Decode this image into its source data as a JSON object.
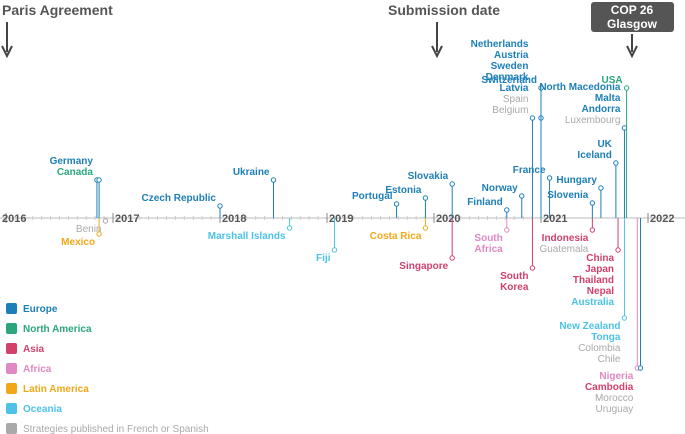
{
  "colors": {
    "Europe": "#1d7fb8",
    "North America": "#2ba67a",
    "Asia": "#d1416b",
    "Africa": "#e089c2",
    "Latin America": "#f0a819",
    "Oceania": "#4cc3e6",
    "Strategies published in French or Spanish": "#a9a9a9"
  },
  "headers": {
    "paris": "Paris Agreement",
    "submission": "Submission date",
    "cop_line1": "COP 26",
    "cop_line2": "Glasgow"
  },
  "chart_data": {
    "type": "timeline",
    "x_axis": {
      "ticks": [
        "2016",
        "2017",
        "2018",
        "2019",
        "2020",
        "2021",
        "2022"
      ],
      "range": [
        2016.0,
        2022.3
      ]
    },
    "markers": [
      {
        "label": "Paris Agreement",
        "x": 2016.0
      },
      {
        "label": "Submission date",
        "x": 2020.0
      },
      {
        "label": "COP 26 Glasgow",
        "x": 2021.84
      }
    ],
    "legend": [
      {
        "name": "Europe",
        "color": "#1d7fb8"
      },
      {
        "name": "North America",
        "color": "#2ba67a"
      },
      {
        "name": "Asia",
        "color": "#d1416b"
      },
      {
        "name": "Africa",
        "color": "#e089c2"
      },
      {
        "name": "Latin America",
        "color": "#f0a819"
      },
      {
        "name": "Oceania",
        "color": "#4cc3e6"
      },
      {
        "name": "Strategies published in French or Spanish",
        "color": "#a9a9a9"
      }
    ],
    "events": [
      {
        "x": 2016.85,
        "side": "up",
        "len": 38,
        "labels": [
          [
            "Germany",
            "Europe"
          ],
          [
            "Canada",
            "North America"
          ]
        ]
      },
      {
        "x": 2016.87,
        "side": "up",
        "len": 38,
        "labels": []
      },
      {
        "x": 2016.87,
        "side": "down",
        "len": 16,
        "labels": [
          [
            "Mexico",
            "Latin America"
          ]
        ]
      },
      {
        "x": 2016.93,
        "side": "down",
        "len": 3,
        "labels": [
          [
            "Benin",
            "Strategies published in French or Spanish"
          ]
        ]
      },
      {
        "x": 2018.0,
        "side": "up",
        "len": 12,
        "labels": [
          [
            "Czech Republic",
            "Europe"
          ]
        ]
      },
      {
        "x": 2018.5,
        "side": "up",
        "len": 38,
        "labels": [
          [
            "Ukraine",
            "Europe"
          ]
        ]
      },
      {
        "x": 2018.65,
        "side": "down",
        "len": 10,
        "labels": [
          [
            "Marshall Islands",
            "Oceania"
          ]
        ]
      },
      {
        "x": 2019.07,
        "side": "down",
        "len": 32,
        "labels": [
          [
            "Fiji",
            "Oceania"
          ]
        ]
      },
      {
        "x": 2019.65,
        "side": "up",
        "len": 14,
        "labels": [
          [
            "Portugal",
            "Europe"
          ]
        ]
      },
      {
        "x": 2019.92,
        "side": "up",
        "len": 20,
        "labels": [
          [
            "Estonia",
            "Europe"
          ]
        ]
      },
      {
        "x": 2019.92,
        "side": "down",
        "len": 10,
        "labels": [
          [
            "Costa Rica",
            "Latin America"
          ]
        ]
      },
      {
        "x": 2020.17,
        "side": "up",
        "len": 34,
        "labels": [
          [
            "Slovakia",
            "Europe"
          ]
        ]
      },
      {
        "x": 2020.17,
        "side": "down",
        "len": 40,
        "labels": [
          [
            "Singapore",
            "Asia"
          ]
        ]
      },
      {
        "x": 2020.68,
        "side": "up",
        "len": 8,
        "labels": [
          [
            "Finland",
            "Europe"
          ]
        ]
      },
      {
        "x": 2020.68,
        "side": "down",
        "len": 12,
        "labels": [
          [
            "South",
            "Africa"
          ],
          [
            "Africa",
            "Africa"
          ]
        ]
      },
      {
        "x": 2020.82,
        "side": "up",
        "len": 22,
        "labels": [
          [
            "Norway",
            "Europe"
          ]
        ]
      },
      {
        "x": 2020.92,
        "side": "up",
        "len": 100,
        "labels": [
          [
            "Netherlands",
            "Europe"
          ],
          [
            "Austria",
            "Europe"
          ],
          [
            "Sweden",
            "Europe"
          ],
          [
            "Denmark",
            "Europe"
          ],
          [
            "Latvia",
            "Europe"
          ],
          [
            "Spain",
            "Strategies published in French or Spanish"
          ],
          [
            "Belgium",
            "Strategies published in French or Spanish"
          ]
        ]
      },
      {
        "x": 2020.92,
        "side": "down",
        "len": 50,
        "labels": [
          [
            "South",
            "Asia"
          ],
          [
            "Korea",
            "Asia"
          ]
        ]
      },
      {
        "x": 2021.0,
        "side": "up",
        "len": 100,
        "labels": []
      },
      {
        "x": 2021.0,
        "side": "up",
        "len": 130,
        "labels": [
          [
            "Switzerland",
            "Europe"
          ]
        ]
      },
      {
        "x": 2021.08,
        "side": "up",
        "len": 40,
        "labels": [
          [
            "France",
            "Europe"
          ]
        ]
      },
      {
        "x": 2021.48,
        "side": "up",
        "len": 15,
        "labels": [
          [
            "Slovenia",
            "Europe"
          ]
        ]
      },
      {
        "x": 2021.56,
        "side": "up",
        "len": 30,
        "labels": [
          [
            "Hungary",
            "Europe"
          ]
        ]
      },
      {
        "x": 2021.48,
        "side": "down",
        "len": 12,
        "labels": [
          [
            "Indonesia",
            "Asia"
          ],
          [
            "Guatemala",
            "Strategies published in French or Spanish"
          ]
        ]
      },
      {
        "x": 2021.7,
        "side": "up",
        "len": 55,
        "labels": [
          [
            "UK",
            "Europe"
          ],
          [
            "Iceland",
            "Europe"
          ]
        ]
      },
      {
        "x": 2021.72,
        "side": "down",
        "len": 32,
        "labels": [
          [
            "China",
            "Asia"
          ],
          [
            "Japan",
            "Asia"
          ],
          [
            "Thailand",
            "Asia"
          ],
          [
            "Nepal",
            "Asia"
          ],
          [
            "Australia",
            "Oceania"
          ]
        ]
      },
      {
        "x": 2021.78,
        "side": "up",
        "len": 90,
        "labels": [
          [
            "North Macedonia",
            "Europe"
          ],
          [
            "Malta",
            "Europe"
          ],
          [
            "Andorra",
            "Europe"
          ],
          [
            "Luxembourg",
            "Strategies published in French or Spanish"
          ]
        ]
      },
      {
        "x": 2021.8,
        "side": "up",
        "len": 130,
        "labels": [
          [
            "USA",
            "North America"
          ]
        ]
      },
      {
        "x": 2021.78,
        "side": "down",
        "len": 100,
        "labels": [
          [
            "New Zealand",
            "Oceania"
          ],
          [
            "Tonga",
            "Oceania"
          ],
          [
            "Colombia",
            "Strategies published in French or Spanish"
          ],
          [
            "Chile",
            "Strategies published in French or Spanish"
          ]
        ]
      },
      {
        "x": 2021.9,
        "side": "down",
        "len": 150,
        "labels": [
          [
            "Nigeria",
            "Africa"
          ],
          [
            "Cambodia",
            "Asia"
          ],
          [
            "Morocco",
            "Strategies published in French or Spanish"
          ],
          [
            "Uruguay",
            "Strategies published in French or Spanish"
          ]
        ]
      },
      {
        "x": 2021.93,
        "side": "down",
        "len": 150,
        "labels": []
      }
    ]
  }
}
